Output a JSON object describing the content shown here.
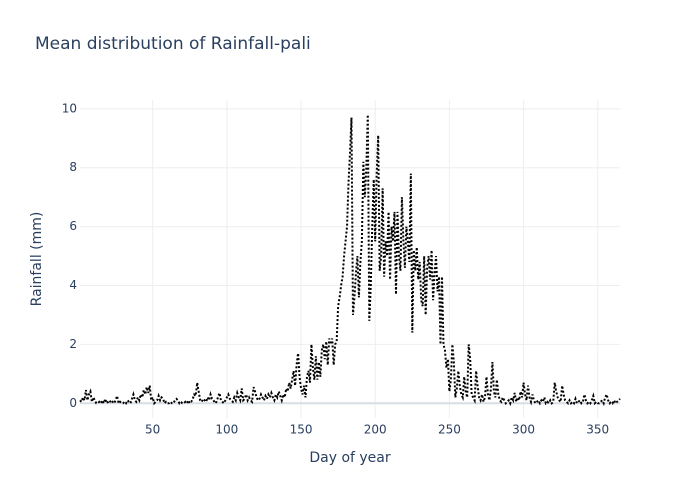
{
  "chart_data": {
    "type": "line",
    "title": "Mean distribution of Rainfall-pali",
    "x_label": "Day of year",
    "y_label": "Rainfall (mm)",
    "x": [
      1,
      2,
      3,
      4,
      5,
      6,
      7,
      8,
      9,
      10,
      11,
      12,
      13,
      14,
      15,
      16,
      17,
      18,
      19,
      20,
      21,
      22,
      23,
      24,
      25,
      26,
      27,
      28,
      29,
      30,
      31,
      32,
      33,
      34,
      35,
      36,
      37,
      38,
      39,
      40,
      41,
      42,
      43,
      44,
      45,
      46,
      47,
      48,
      49,
      50,
      51,
      52,
      53,
      54,
      55,
      56,
      57,
      58,
      59,
      60,
      61,
      62,
      63,
      64,
      65,
      66,
      67,
      68,
      69,
      70,
      71,
      72,
      73,
      74,
      75,
      76,
      77,
      78,
      79,
      80,
      81,
      82,
      83,
      84,
      85,
      86,
      87,
      88,
      89,
      90,
      91,
      92,
      93,
      94,
      95,
      96,
      97,
      98,
      99,
      100,
      101,
      102,
      103,
      104,
      105,
      106,
      107,
      108,
      109,
      110,
      111,
      112,
      113,
      114,
      115,
      116,
      117,
      118,
      119,
      120,
      121,
      122,
      123,
      124,
      125,
      126,
      127,
      128,
      129,
      130,
      131,
      132,
      133,
      134,
      135,
      136,
      137,
      138,
      139,
      140,
      141,
      142,
      143,
      144,
      145,
      146,
      147,
      148,
      149,
      150,
      151,
      152,
      153,
      154,
      155,
      156,
      157,
      158,
      159,
      160,
      161,
      162,
      163,
      164,
      165,
      166,
      167,
      168,
      169,
      170,
      171,
      172,
      173,
      174,
      175,
      176,
      177,
      178,
      179,
      180,
      181,
      182,
      183,
      184,
      185,
      186,
      187,
      188,
      189,
      190,
      191,
      192,
      193,
      194,
      195,
      196,
      197,
      198,
      199,
      200,
      201,
      202,
      203,
      204,
      205,
      206,
      207,
      208,
      209,
      210,
      211,
      212,
      213,
      214,
      215,
      216,
      217,
      218,
      219,
      220,
      221,
      222,
      223,
      224,
      225,
      226,
      227,
      228,
      229,
      230,
      231,
      232,
      233,
      234,
      235,
      236,
      237,
      238,
      239,
      240,
      241,
      242,
      243,
      244,
      245,
      246,
      247,
      248,
      249,
      250,
      251,
      252,
      253,
      254,
      255,
      256,
      257,
      258,
      259,
      260,
      261,
      262,
      263,
      264,
      265,
      266,
      267,
      268,
      269,
      270,
      271,
      272,
      273,
      274,
      275,
      276,
      277,
      278,
      279,
      280,
      281,
      282,
      283,
      284,
      285,
      286,
      287,
      288,
      289,
      290,
      291,
      292,
      293,
      294,
      295,
      296,
      297,
      298,
      299,
      300,
      301,
      302,
      303,
      304,
      305,
      306,
      307,
      308,
      309,
      310,
      311,
      312,
      313,
      314,
      315,
      316,
      317,
      318,
      319,
      320,
      321,
      322,
      323,
      324,
      325,
      326,
      327,
      328,
      329,
      330,
      331,
      332,
      333,
      334,
      335,
      336,
      337,
      338,
      339,
      340,
      341,
      342,
      343,
      344,
      345,
      346,
      347,
      348,
      349,
      350,
      351,
      352,
      353,
      354,
      355,
      356,
      357,
      358,
      359,
      360,
      361,
      362,
      363,
      364,
      365
    ],
    "series": [
      {
        "color": "#000000",
        "values": [
          0.1,
          0.05,
          0.2,
          0.1,
          0.45,
          0.1,
          0.3,
          0.4,
          0.05,
          0.2,
          0.1,
          0,
          0,
          0.05,
          0,
          0.1,
          0,
          0.15,
          0,
          0.05,
          0.1,
          0,
          0.05,
          0,
          0.1,
          0.25,
          0,
          0.05,
          0,
          0,
          0.05,
          0,
          0.1,
          0.05,
          0,
          0.15,
          0.3,
          0.1,
          0.05,
          0.2,
          0.1,
          0.3,
          0.2,
          0.45,
          0.3,
          0.55,
          0.35,
          0.6,
          0.1,
          0.2,
          0,
          0.05,
          0.1,
          0.25,
          0.1,
          0.2,
          0.15,
          0,
          0.05,
          0,
          0,
          0.05,
          0,
          0,
          0.1,
          0.15,
          0.1,
          0,
          0.05,
          0,
          0,
          0.05,
          0,
          0.1,
          0,
          0.05,
          0.15,
          0.3,
          0.25,
          0.7,
          0.4,
          0.1,
          0.05,
          0.15,
          0.1,
          0.05,
          0.2,
          0.1,
          0.3,
          0.15,
          0.1,
          0,
          0.05,
          0.2,
          0.35,
          0.1,
          0.05,
          0,
          0.1,
          0.2,
          0.3,
          0.15,
          0.1,
          0.05,
          0.2,
          0.1,
          0.35,
          0.2,
          0.1,
          0.5,
          0.1,
          0.15,
          0.3,
          0.1,
          0.2,
          0.1,
          0.05,
          0.55,
          0.4,
          0.2,
          0.1,
          0.15,
          0.3,
          0.2,
          0.1,
          0.25,
          0.15,
          0.3,
          0.2,
          0.35,
          0.2,
          0.1,
          0.3,
          0.2,
          0.4,
          0.25,
          0.1,
          0.3,
          0.2,
          0.5,
          0.4,
          0.7,
          0.5,
          0.8,
          1.1,
          0.6,
          1.3,
          1.7,
          0.9,
          0.5,
          0.3,
          0.6,
          0.2,
          0.9,
          1.1,
          0.7,
          2.0,
          1.2,
          0.8,
          1.6,
          0.8,
          1.4,
          0.9,
          1.8,
          2.0,
          1.5,
          2.1,
          1.3,
          2.2,
          2.0,
          2.2,
          1.3,
          2.0,
          2.1,
          3.3,
          3.6,
          4.0,
          4.3,
          5.0,
          5.5,
          6.0,
          7.5,
          8.5,
          9.7,
          3.0,
          3.6,
          4.4,
          5.0,
          3.6,
          4.8,
          5.5,
          8.2,
          7.0,
          8.0,
          9.8,
          2.8,
          4.0,
          6.0,
          7.6,
          5.5,
          7.8,
          9.1,
          4.5,
          5.0,
          7.3,
          4.3,
          5.5,
          5.0,
          6.5,
          4.2,
          6.0,
          5.5,
          6.5,
          3.7,
          6.5,
          5.0,
          4.5,
          7.0,
          5.5,
          4.6,
          6.0,
          5.5,
          4.8,
          7.8,
          2.4,
          5.2,
          4.5,
          5.3,
          4.2,
          4.8,
          3.5,
          3.3,
          5.0,
          3.0,
          4.6,
          5.0,
          4.2,
          5.2,
          3.5,
          4.4,
          5.0,
          3.8,
          4.3,
          2.0,
          4.3,
          2.0,
          1.8,
          1.2,
          1.5,
          0.4,
          0.8,
          2.0,
          1.4,
          0.2,
          0.5,
          1.1,
          0.6,
          0.3,
          0.2,
          0.9,
          0.4,
          0.2,
          2.0,
          1.5,
          0.3,
          0.2,
          0.1,
          1.1,
          0.6,
          0.2,
          0.1,
          0.3,
          0.05,
          0.2,
          0.9,
          0.3,
          0.1,
          0.5,
          1.4,
          0.4,
          0.2,
          0.8,
          0.3,
          0.1,
          0.05,
          0.2,
          0.1,
          0,
          0.05,
          0.1,
          0,
          0.2,
          0.1,
          0.35,
          0.05,
          0.2,
          0.1,
          0.4,
          0.2,
          0.7,
          0.3,
          0.1,
          0.6,
          0.2,
          0.05,
          0.3,
          0.1,
          0,
          0.05,
          0.1,
          0,
          0.1,
          0.05,
          0.2,
          0,
          0.05,
          0,
          0.1,
          0,
          0.05,
          0.7,
          0.4,
          0.2,
          0.1,
          0.05,
          0.6,
          0.3,
          0.1,
          0.05,
          0,
          0.1,
          0,
          0.05,
          0,
          0.15,
          0,
          0.05,
          0.1,
          0,
          0.05,
          0.3,
          0.1,
          0,
          0.05,
          0,
          0.1,
          0.25,
          0,
          0.05,
          0,
          0,
          0.05,
          0.1,
          0,
          0.2,
          0.3,
          0.1,
          0,
          0.05,
          0,
          0.1,
          0,
          0.05,
          0.1,
          0.15
        ]
      }
    ],
    "xlim": [
      1,
      365
    ],
    "xticks": [
      50,
      100,
      150,
      200,
      250,
      300,
      350
    ],
    "ylim": [
      -0.5,
      10.3
    ],
    "yticks": [
      0,
      2,
      4,
      6,
      8,
      10
    ],
    "grid": true,
    "line_style": "dotted"
  }
}
